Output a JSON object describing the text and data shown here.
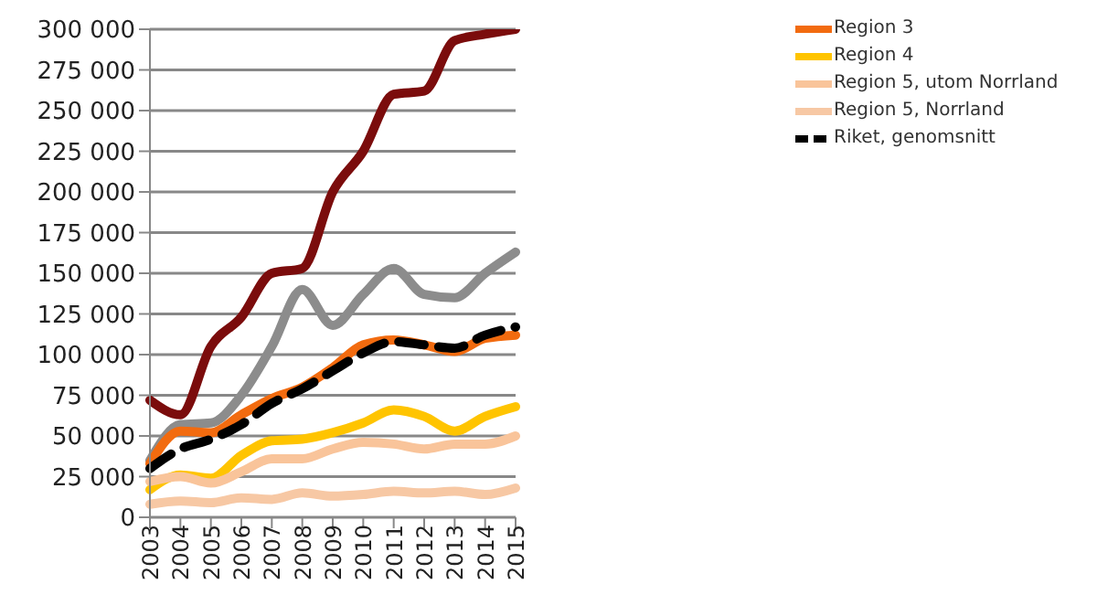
{
  "chart_data": {
    "type": "line",
    "categories": [
      "2003",
      "2004",
      "2005",
      "2006",
      "2007",
      "2008",
      "2009",
      "2010",
      "2011",
      "2012",
      "2013",
      "2014",
      "2015"
    ],
    "series": [
      {
        "color": "#7b0c0c",
        "values": [
          72000,
          63000,
          105000,
          123000,
          150000,
          153000,
          200000,
          225000,
          260000,
          262000,
          293000,
          297000,
          300000
        ]
      },
      {
        "color": "#8c8c8c",
        "values": [
          35000,
          57000,
          58000,
          75000,
          105000,
          140000,
          118000,
          137000,
          153000,
          137000,
          135000,
          150000,
          163000
        ]
      },
      {
        "name": "Region 3",
        "color": "#f26b0f",
        "values": [
          33000,
          53000,
          52000,
          63000,
          73000,
          80000,
          92000,
          106000,
          109000,
          106000,
          102000,
          110000,
          112000
        ]
      },
      {
        "name": "Region 4",
        "color": "#ffc400",
        "values": [
          17000,
          26000,
          24000,
          38000,
          47000,
          48000,
          52000,
          58000,
          66000,
          62000,
          53000,
          62000,
          68000
        ]
      },
      {
        "name": "Region 5, utom Norrland",
        "color": "#f9c49a",
        "values": [
          22000,
          25000,
          21000,
          28000,
          36000,
          36000,
          42000,
          46000,
          45000,
          42000,
          45000,
          45000,
          50000
        ]
      },
      {
        "name": "Region 5, Norrland",
        "color": "#f7c8a4",
        "values": [
          8000,
          10000,
          9000,
          12000,
          11000,
          15000,
          13000,
          14000,
          16000,
          15000,
          16000,
          14000,
          18000
        ]
      },
      {
        "name": "Riket, genomsnitt",
        "color": "#000000",
        "line_style": "dashed",
        "values": [
          30000,
          42000,
          48000,
          57000,
          70000,
          79000,
          90000,
          101000,
          108000,
          106000,
          104000,
          112000,
          117000
        ]
      }
    ],
    "ylim": [
      0,
      300000
    ],
    "yticks": [
      {
        "value": 0,
        "label": "0"
      },
      {
        "value": 25000,
        "label": "25 000"
      },
      {
        "value": 50000,
        "label": "50 000"
      },
      {
        "value": 75000,
        "label": "75 000"
      },
      {
        "value": 100000,
        "label": "100 000"
      },
      {
        "value": 125000,
        "label": "125 000"
      },
      {
        "value": 150000,
        "label": "150 000"
      },
      {
        "value": 175000,
        "label": "175 000"
      },
      {
        "value": 200000,
        "label": "200 000"
      },
      {
        "value": 225000,
        "label": "225 000"
      },
      {
        "value": 250000,
        "label": "250 000"
      },
      {
        "value": 275000,
        "label": "275 000"
      },
      {
        "value": 300000,
        "label": "300 000"
      }
    ],
    "grid": "y",
    "legend": "top right",
    "marker": "none"
  }
}
